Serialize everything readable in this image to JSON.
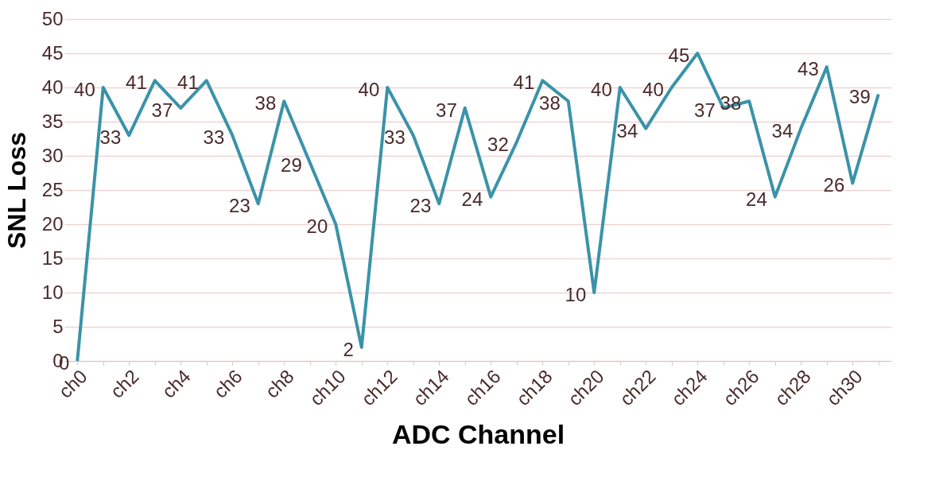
{
  "chart_data": {
    "type": "line",
    "xlabel": "ADC Channel",
    "ylabel": "SNL Loss",
    "categories": [
      "ch0",
      null,
      "ch2",
      null,
      "ch4",
      null,
      "ch6",
      null,
      "ch8",
      null,
      "ch10",
      null,
      "ch12",
      null,
      "ch14",
      null,
      "ch16",
      null,
      "ch18",
      null,
      "ch20",
      null,
      "ch22",
      null,
      "ch24",
      null,
      "ch26",
      null,
      "ch28",
      null,
      "ch30",
      null
    ],
    "series": [
      {
        "color": "#3a93a8",
        "values": [
          0,
          40,
          33,
          41,
          37,
          41,
          33,
          23,
          38,
          29,
          20,
          2,
          40,
          33,
          23,
          37,
          24,
          32,
          41,
          38,
          10,
          40,
          34,
          40,
          45,
          37,
          38,
          24,
          34,
          43,
          26,
          39
        ]
      }
    ],
    "ylim": [
      0,
      50
    ],
    "yticks": [
      0,
      5,
      10,
      15,
      20,
      25,
      30,
      35,
      40,
      45,
      50
    ],
    "grid": "y",
    "data_labels": true,
    "marker": "none",
    "line_style": "solid"
  }
}
